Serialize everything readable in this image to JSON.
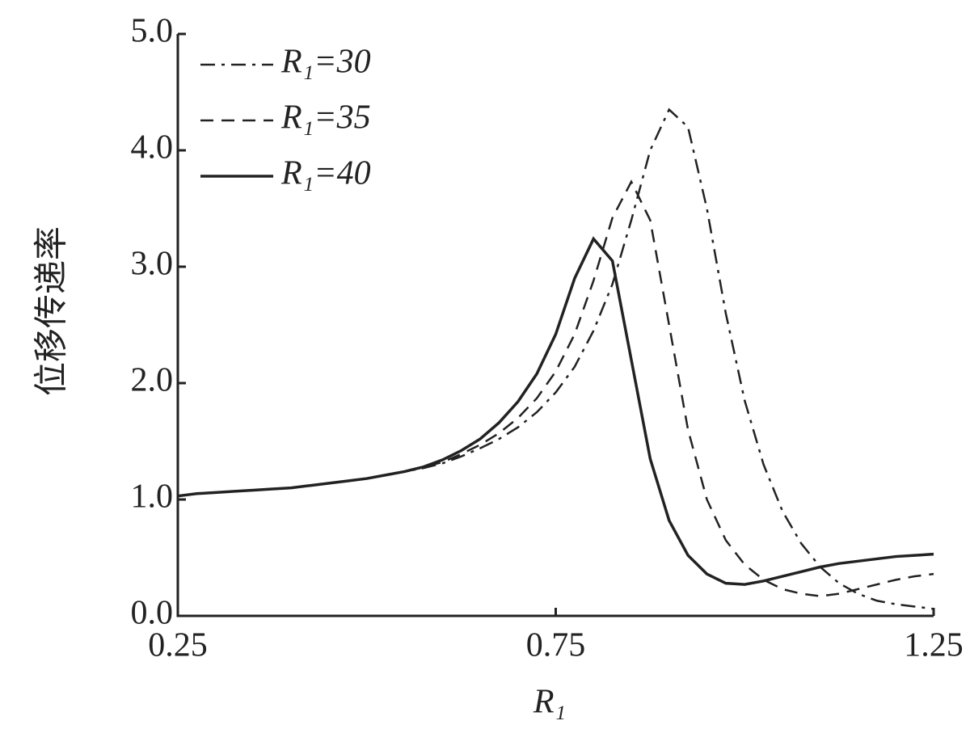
{
  "chart_data": {
    "type": "line",
    "x_label": "R₁",
    "y_label": "位移传递率",
    "x": [
      0.25,
      0.275,
      0.3,
      0.325,
      0.35,
      0.375,
      0.4,
      0.425,
      0.45,
      0.475,
      0.5,
      0.525,
      0.55,
      0.575,
      0.6,
      0.625,
      0.65,
      0.675,
      0.7,
      0.725,
      0.75,
      0.775,
      0.8,
      0.825,
      0.85,
      0.875,
      0.9,
      0.925,
      0.95,
      0.975,
      1.0,
      1.025,
      1.05,
      1.075,
      1.1,
      1.125,
      1.15,
      1.175,
      1.2,
      1.225,
      1.25
    ],
    "series": [
      {
        "name": "R₁=30",
        "color": "#222222",
        "linestyle": "dashdot",
        "values": [
          1.03,
          1.05,
          1.06,
          1.07,
          1.08,
          1.09,
          1.1,
          1.12,
          1.14,
          1.16,
          1.18,
          1.21,
          1.24,
          1.27,
          1.31,
          1.37,
          1.44,
          1.52,
          1.62,
          1.75,
          1.92,
          2.14,
          2.45,
          2.85,
          3.4,
          4.0,
          4.35,
          4.2,
          3.5,
          2.6,
          1.85,
          1.3,
          0.9,
          0.62,
          0.42,
          0.28,
          0.19,
          0.13,
          0.1,
          0.08,
          0.06
        ]
      },
      {
        "name": "R₁=35",
        "color": "#222222",
        "linestyle": "dashed",
        "values": [
          1.03,
          1.05,
          1.06,
          1.07,
          1.08,
          1.09,
          1.1,
          1.12,
          1.14,
          1.16,
          1.18,
          1.21,
          1.24,
          1.28,
          1.32,
          1.39,
          1.47,
          1.57,
          1.7,
          1.87,
          2.1,
          2.42,
          2.88,
          3.42,
          3.73,
          3.4,
          2.5,
          1.6,
          1.0,
          0.65,
          0.44,
          0.31,
          0.23,
          0.19,
          0.17,
          0.19,
          0.23,
          0.27,
          0.31,
          0.34,
          0.36
        ]
      },
      {
        "name": "R₁=40",
        "color": "#222222",
        "linestyle": "solid",
        "values": [
          1.03,
          1.05,
          1.06,
          1.07,
          1.08,
          1.09,
          1.1,
          1.12,
          1.14,
          1.16,
          1.18,
          1.21,
          1.24,
          1.28,
          1.34,
          1.42,
          1.52,
          1.66,
          1.84,
          2.08,
          2.42,
          2.9,
          3.24,
          3.05,
          2.2,
          1.35,
          0.82,
          0.52,
          0.36,
          0.28,
          0.27,
          0.3,
          0.34,
          0.38,
          0.42,
          0.45,
          0.47,
          0.49,
          0.51,
          0.52,
          0.53
        ]
      }
    ],
    "xlim": [
      0.25,
      1.25
    ],
    "xticks": [
      0.25,
      0.75,
      1.25
    ],
    "ylim": [
      0,
      5
    ],
    "yticks": [
      {
        "value": 0,
        "label": "0.0"
      },
      {
        "value": 1,
        "label": "1.0"
      },
      {
        "value": 2,
        "label": "2.0"
      },
      {
        "value": 3,
        "label": "3.0"
      },
      {
        "value": 4,
        "label": "4.0"
      },
      {
        "value": 5,
        "label": "5.0"
      }
    ],
    "legend": "upper-left",
    "grid": false
  }
}
